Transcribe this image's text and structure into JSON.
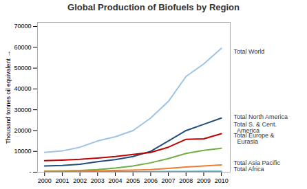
{
  "chart_data": {
    "type": "line",
    "title": "Global Production of Biofuels  by Region",
    "ylabel": "Thousand tonnes oil equivalent",
    "x": [
      2000,
      2001,
      2002,
      2003,
      2004,
      2005,
      2006,
      2007,
      2008,
      2009,
      2010
    ],
    "series": [
      {
        "name": "Total World",
        "color": "#9DC3E6",
        "values": [
          9500,
          10200,
          12000,
          15000,
          17000,
          20000,
          26000,
          34000,
          46000,
          52000,
          59500
        ]
      },
      {
        "name": "Total North America",
        "color": "#1F4E79",
        "values": [
          3000,
          3200,
          3800,
          5000,
          6000,
          7500,
          10000,
          15000,
          20000,
          23000,
          26000
        ]
      },
      {
        "name": "Total S. & Cent. America",
        "color": "#C00000",
        "values": [
          5500,
          5800,
          6200,
          6800,
          7500,
          8500,
          9500,
          12000,
          15800,
          16000,
          18500
        ]
      },
      {
        "name": "Total Europe & Eurasia",
        "color": "#70AD47",
        "values": [
          500,
          600,
          800,
          1200,
          2000,
          3000,
          4500,
          6500,
          9000,
          10500,
          11500
        ]
      },
      {
        "name": "Total Asia Pacific",
        "color": "#ED7D31",
        "values": [
          300,
          350,
          400,
          600,
          800,
          1000,
          1200,
          1800,
          2500,
          3000,
          3500
        ]
      },
      {
        "name": "Total Africa",
        "color": "#4BACC6",
        "values": [
          100,
          110,
          130,
          150,
          170,
          200,
          250,
          300,
          350,
          400,
          450
        ]
      }
    ],
    "annotations": [
      {
        "text": "Total World",
        "y": 58000
      },
      {
        "text": "Total North America",
        "y": 26500
      },
      {
        "text": "Total S. & Cent.\n  America",
        "y": 21500
      },
      {
        "text": "Total Europe &\n  Eurasia",
        "y": 16000
      },
      {
        "text": "Total Asia Pacific",
        "y": 4500
      },
      {
        "text": "Total Africa",
        "y": 1500
      }
    ],
    "xlim": [
      1999.6,
      2010.5
    ],
    "xticks": [
      2000,
      2001,
      2002,
      2003,
      2004,
      2005,
      2006,
      2007,
      2008,
      2009,
      2010
    ],
    "ylim": [
      0,
      72000
    ],
    "yticks": [
      {
        "value": 0,
        "label": "-"
      },
      10000,
      20000,
      30000,
      40000,
      50000,
      60000,
      70000
    ],
    "grid": false
  }
}
